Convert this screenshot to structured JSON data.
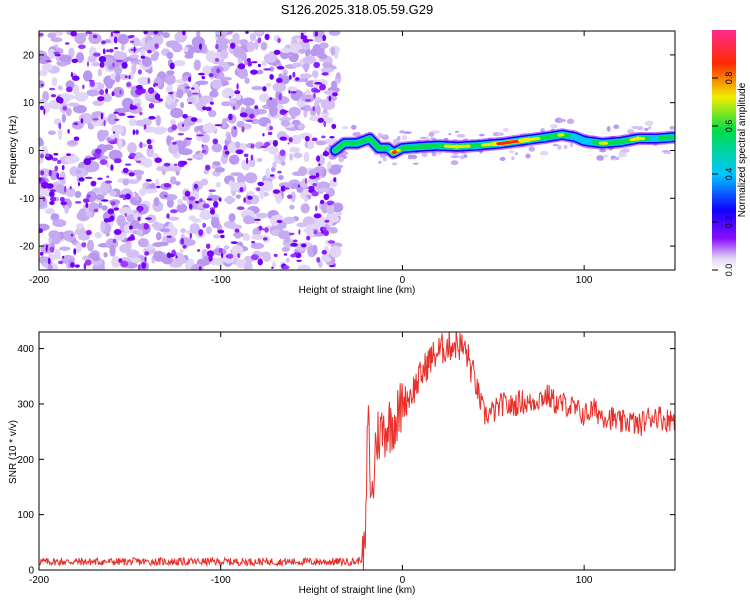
{
  "figure": {
    "title": "S126.2025.318.05.59.G29"
  },
  "colors": {
    "noise": "#7a00ff",
    "snr_line": "#e8302a",
    "colormap": [
      "#ffffff",
      "#d8c8f5",
      "#7a00ff",
      "#1500ff",
      "#00c8ff",
      "#00e05a",
      "#ffe800",
      "#ff2000",
      "#ff40a0"
    ]
  },
  "chart_data": [
    {
      "type": "heatmap",
      "title": "S126.2025.318.05.59.G29",
      "xlabel": "Height of straight line (km)",
      "ylabel": "Frequency (Hz)",
      "xlim": [
        -200,
        150
      ],
      "ylim": [
        -25,
        25
      ],
      "xticks": [
        -200,
        -100,
        0,
        100
      ],
      "xtick_labels": [
        "-200",
        "-100",
        "0",
        "100"
      ],
      "yticks": [
        -20,
        -10,
        0,
        10,
        20
      ],
      "ytick_labels": [
        "-20",
        "-10",
        "0",
        "10",
        "20"
      ],
      "noise_region_x": [
        -200,
        -37
      ],
      "colorbar": {
        "label": "Normalized spectral amplitude",
        "range": [
          0,
          1
        ],
        "ticks": [
          0.0,
          0.2,
          0.4,
          0.6,
          0.8
        ],
        "tick_labels": [
          "0.0",
          "0.2",
          "0.4",
          "0.6",
          "0.8"
        ]
      },
      "ridge": {
        "x": [
          -37,
          -32,
          -25,
          -18,
          -13,
          -8,
          -5,
          0,
          10,
          20,
          30,
          40,
          55,
          70,
          80,
          88,
          95,
          100,
          110,
          120,
          130,
          140,
          150
        ],
        "frequency": [
          0,
          1.5,
          1.5,
          2.5,
          0.5,
          0.5,
          -0.5,
          0.5,
          0.8,
          1.0,
          0.8,
          1.0,
          1.5,
          2.3,
          2.8,
          3.3,
          2.8,
          2.0,
          1.5,
          1.8,
          2.5,
          2.5,
          2.8
        ],
        "amplitude": [
          0.15,
          0.35,
          0.4,
          0.45,
          0.35,
          0.45,
          0.95,
          0.7,
          0.7,
          0.75,
          0.85,
          0.75,
          0.88,
          0.85,
          0.7,
          0.8,
          0.65,
          0.6,
          0.8,
          0.7,
          0.85,
          0.6,
          0.5
        ]
      }
    },
    {
      "type": "line",
      "title": "",
      "xlabel": "Height of straight line (km)",
      "ylabel": "SNR (10 * v/v)",
      "xlim": [
        -200,
        150
      ],
      "ylim": [
        0,
        430
      ],
      "xticks": [
        -200,
        -100,
        0,
        100
      ],
      "xtick_labels": [
        "-200",
        "-100",
        "0",
        "100"
      ],
      "yticks": [
        0,
        100,
        200,
        300,
        400
      ],
      "ytick_labels": [
        "0",
        "100",
        "200",
        "300",
        "400"
      ],
      "series": [
        {
          "name": "SNR",
          "x": [
            -200,
            -150,
            -100,
            -50,
            -25,
            -21,
            -20,
            -19,
            -18,
            -17,
            -16,
            -15,
            -14,
            -12,
            -10,
            -8,
            -5,
            -2,
            0,
            5,
            10,
            15,
            20,
            25,
            30,
            35,
            40,
            45,
            50,
            55,
            60,
            65,
            70,
            75,
            80,
            85,
            90,
            95,
            100,
            105,
            110,
            115,
            120,
            125,
            130,
            135,
            140,
            145,
            150
          ],
          "y": [
            15,
            15,
            15,
            15,
            15,
            25,
            80,
            300,
            190,
            120,
            150,
            220,
            240,
            250,
            255,
            260,
            270,
            280,
            300,
            320,
            350,
            380,
            395,
            405,
            410,
            395,
            340,
            280,
            285,
            300,
            295,
            305,
            300,
            310,
            315,
            300,
            300,
            290,
            280,
            290,
            280,
            275,
            265,
            270,
            260,
            275,
            280,
            270,
            275
          ]
        }
      ]
    }
  ]
}
